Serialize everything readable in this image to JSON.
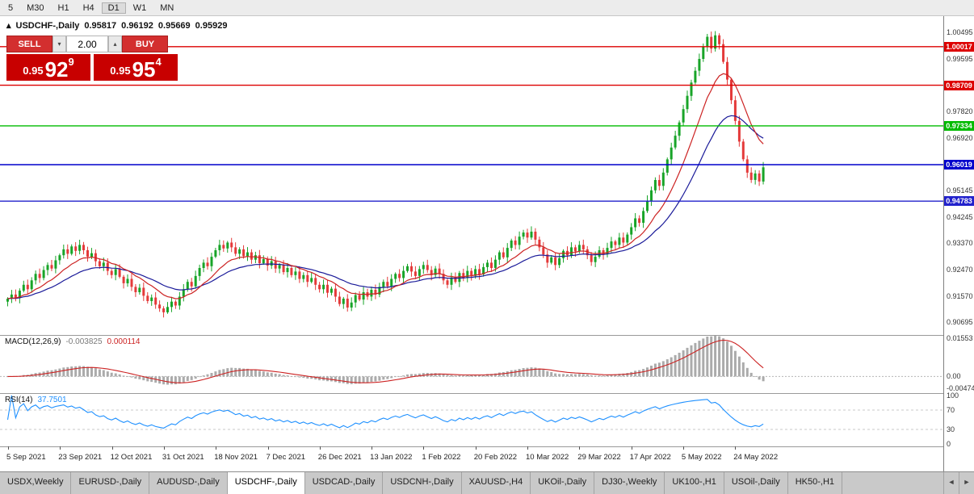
{
  "toolbar": {
    "timeframes": [
      "5",
      "M30",
      "H1",
      "H4",
      "D1",
      "W1",
      "MN"
    ],
    "active": "D1"
  },
  "symbol_line": {
    "collapse_icon": "▴",
    "symbol": "USDCHF-,Daily",
    "open": "0.95817",
    "high": "0.96192",
    "low": "0.95669",
    "close": "0.95929"
  },
  "trade_panel": {
    "sell_label": "SELL",
    "buy_label": "BUY",
    "volume": "2.00",
    "spin_down_icon": "▾",
    "spin_up_icon": "▴",
    "sell_price": {
      "prefix": "0.95",
      "main": "92",
      "sup": "9"
    },
    "buy_price": {
      "prefix": "0.95",
      "main": "95",
      "sup": "4"
    }
  },
  "price_axis": {
    "ticks": [
      "1.00495",
      "0.99595",
      "0.98695",
      "0.97820",
      "0.96920",
      "0.96020",
      "0.95145",
      "0.94245",
      "0.93370",
      "0.92470",
      "0.91570",
      "0.90695"
    ]
  },
  "hlines": [
    {
      "label": "1.00017",
      "price": 1.00017,
      "color": "#dd0000"
    },
    {
      "label": "0.98709",
      "price": 0.98709,
      "color": "#dd0000"
    },
    {
      "label": "0.97334",
      "price": 0.97334,
      "color": "#00bb00"
    },
    {
      "label": "0.96019",
      "price": 0.96019,
      "color": "#0000cc"
    },
    {
      "label": "0.94783",
      "price": 0.94783,
      "color": "#2222cc"
    }
  ],
  "macd": {
    "name": "MACD(12,26,9)",
    "value_main": "-0.003825",
    "value_signal": "0.000114",
    "axis": [
      "0.01553",
      "0.00",
      "-0.00474"
    ]
  },
  "rsi": {
    "name": "RSI(14)",
    "value": "37.7501",
    "axis": [
      "100",
      "70",
      "30",
      "0"
    ],
    "levels": [
      70,
      30
    ]
  },
  "date_axis": [
    "5 Sep 2021",
    "23 Sep 2021",
    "12 Oct 2021",
    "31 Oct 2021",
    "18 Nov 2021",
    "7 Dec 2021",
    "26 Dec 2021",
    "13 Jan 2022",
    "1 Feb 2022",
    "20 Feb 2022",
    "10 Mar 2022",
    "29 Mar 2022",
    "17 Apr 2022",
    "5 May 2022",
    "24 May 2022"
  ],
  "tabs": {
    "items": [
      "USDX,Weekly",
      "EURUSD-,Daily",
      "AUDUSD-,Daily",
      "USDCHF-,Daily",
      "USDCAD-,Daily",
      "USDCNH-,Daily",
      "XAUUSD-,H4",
      "UKOil-,Daily",
      "DJ30-,Weekly",
      "UK100-,H1",
      "USOil-,Daily",
      "HK50-,H1"
    ],
    "active": "USDCHF-,Daily",
    "scroll_left_icon": "◄",
    "scroll_right_icon": "►"
  },
  "colors": {
    "candle_up": "#18a428",
    "candle_down": "#e43a3a",
    "ma_fast": "#cc2222",
    "ma_slow": "#1a1a99",
    "macd_hist": "#ababab",
    "macd_signal": "#cc2222",
    "rsi_line": "#1e90ff",
    "tag_text": "#ffffff"
  },
  "chart_data": {
    "type": "candlestick",
    "symbol": "USDCHF",
    "timeframe": "Daily",
    "title": "USDCHF-,Daily",
    "ohlc_display": {
      "open": 0.95817,
      "high": 0.96192,
      "low": 0.95669,
      "close": 0.95929
    },
    "ylim": [
      0.90695,
      1.00495
    ],
    "closes": [
      0.9148,
      0.9162,
      0.915,
      0.9175,
      0.9195,
      0.918,
      0.921,
      0.9232,
      0.9218,
      0.9245,
      0.9262,
      0.925,
      0.9278,
      0.9295,
      0.9315,
      0.93,
      0.9325,
      0.931,
      0.933,
      0.9312,
      0.929,
      0.9302,
      0.9275,
      0.9258,
      0.927,
      0.9242,
      0.9228,
      0.9248,
      0.9222,
      0.92,
      0.9215,
      0.9188,
      0.917,
      0.9185,
      0.9158,
      0.914,
      0.9152,
      0.9128,
      0.9115,
      0.9102,
      0.912,
      0.9138,
      0.9125,
      0.9155,
      0.918,
      0.9205,
      0.919,
      0.9225,
      0.9252,
      0.927,
      0.9258,
      0.929,
      0.9312,
      0.933,
      0.9318,
      0.9338,
      0.9322,
      0.93,
      0.9315,
      0.9292,
      0.9305,
      0.928,
      0.9295,
      0.9268,
      0.9282,
      0.926,
      0.9275,
      0.925,
      0.9262,
      0.9238,
      0.9252,
      0.9228,
      0.924,
      0.9215,
      0.9228,
      0.9205,
      0.9218,
      0.9195,
      0.918,
      0.9195,
      0.9168,
      0.9182,
      0.9155,
      0.913,
      0.9148,
      0.9118,
      0.9135,
      0.916,
      0.9145,
      0.917,
      0.9155,
      0.9178,
      0.9162,
      0.9188,
      0.9205,
      0.919,
      0.9215,
      0.9232,
      0.9218,
      0.9242,
      0.9258,
      0.924,
      0.9225,
      0.9248,
      0.9262,
      0.9245,
      0.9228,
      0.925,
      0.9232,
      0.921,
      0.9195,
      0.922,
      0.9205,
      0.9235,
      0.9218,
      0.9242,
      0.9225,
      0.9248,
      0.923,
      0.9255,
      0.927,
      0.9252,
      0.928,
      0.9305,
      0.9288,
      0.932,
      0.9345,
      0.933,
      0.9358,
      0.9372,
      0.9355,
      0.9375,
      0.9348,
      0.9322,
      0.9298,
      0.927,
      0.9288,
      0.9262,
      0.9285,
      0.931,
      0.9295,
      0.9322,
      0.9308,
      0.933,
      0.9315,
      0.9295,
      0.9272,
      0.929,
      0.9312,
      0.9298,
      0.932,
      0.9342,
      0.933,
      0.9355,
      0.9338,
      0.9365,
      0.939,
      0.942,
      0.9405,
      0.9445,
      0.948,
      0.9515,
      0.955,
      0.953,
      0.9575,
      0.962,
      0.966,
      0.97,
      0.9745,
      0.979,
      0.9835,
      0.988,
      0.992,
      0.996,
      1.0,
      1.0035,
      0.9995,
      1.004,
      1.001,
      0.995,
      0.989,
      0.982,
      0.975,
      0.968,
      0.962,
      0.9575,
      0.955,
      0.9572,
      0.9545,
      0.9593
    ],
    "indicators": {
      "macd": {
        "fast": 12,
        "slow": 26,
        "signal": 9,
        "current": [
          -0.003825,
          0.000114
        ]
      },
      "rsi": {
        "period": 14,
        "current": 37.7501
      },
      "moving_averages": [
        {
          "type": "fast",
          "color": "#cc2222"
        },
        {
          "type": "slow",
          "color": "#1a1a99"
        }
      ]
    }
  }
}
